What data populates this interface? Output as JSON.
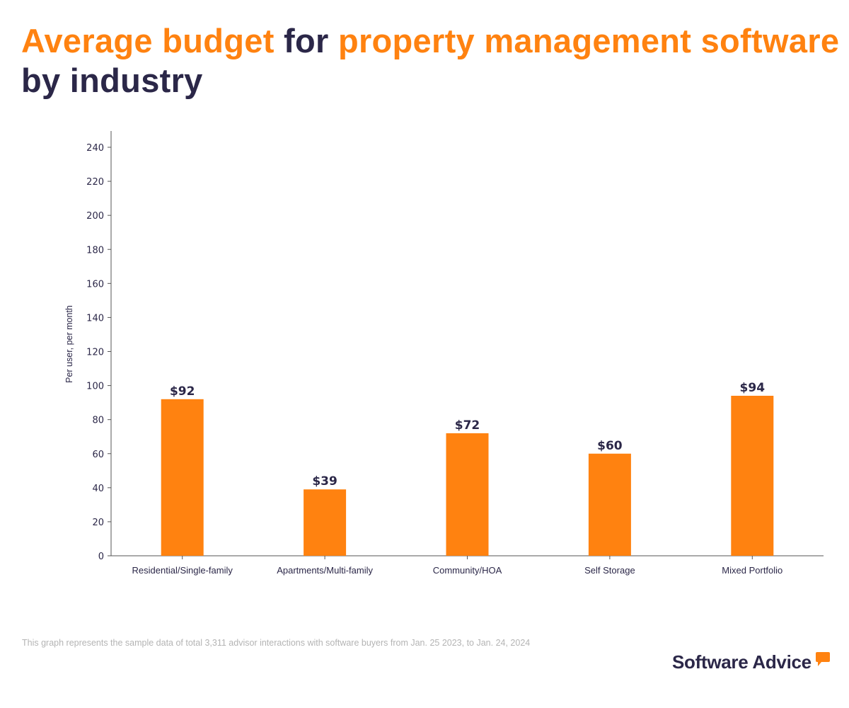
{
  "title": {
    "parts": [
      {
        "text": "Average budget",
        "highlight": true
      },
      {
        "text": " for ",
        "highlight": false
      },
      {
        "text": "property management software",
        "highlight": true
      },
      {
        "text": " by industry",
        "highlight": false
      }
    ]
  },
  "colors": {
    "accent": "#ff8210",
    "text": "#2b2748",
    "axis": "#555555",
    "footnote": "#b4b4b4"
  },
  "chart_data": {
    "type": "bar",
    "title": "Average budget for property management software by industry",
    "xlabel": "",
    "ylabel": "Per user, per month",
    "categories": [
      "Residential/Single-family",
      "Apartments/Multi-family",
      "Community/HOA",
      "Self Storage",
      "Mixed Portfolio"
    ],
    "values": [
      92,
      39,
      72,
      60,
      94
    ],
    "data_labels": [
      "$92",
      "$39",
      "$72",
      "$60",
      "$94"
    ],
    "ylim": [
      0,
      250
    ],
    "yticks": [
      0,
      20,
      40,
      60,
      80,
      100,
      120,
      140,
      160,
      180,
      200,
      220,
      240
    ],
    "grid": false,
    "legend": "none"
  },
  "footnote": "This graph represents the sample data of total 3,311 advisor interactions with software buyers from Jan. 25 2023, to Jan. 24, 2024",
  "logo": {
    "text": "Software Advice",
    "icon": "speech-bubble-icon"
  }
}
